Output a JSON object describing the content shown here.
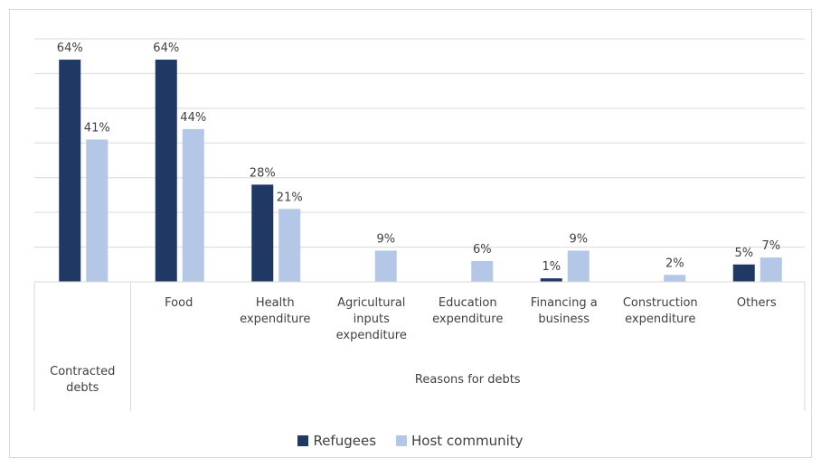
{
  "chart_data": {
    "type": "bar",
    "groups": [
      {
        "label": "Contracted debts",
        "categories": [
          null
        ]
      },
      {
        "label": "Reasons for debts",
        "categories": [
          "Food",
          "Health expenditure",
          "Agricultural inputs expenditure",
          "Education expenditure",
          "Financing a business",
          "Construction expenditure",
          "Others"
        ]
      }
    ],
    "series": [
      {
        "name": "Refugees",
        "color": "#1f3864",
        "values": [
          64,
          64,
          28,
          null,
          null,
          1,
          null,
          5
        ],
        "value_labels": [
          "64%",
          "64%",
          "28%",
          null,
          null,
          "1%",
          null,
          "5%"
        ]
      },
      {
        "name": "Host community",
        "color": "#b4c7e7",
        "values": [
          41,
          44,
          21,
          9,
          6,
          9,
          2,
          7
        ],
        "value_labels": [
          "41%",
          "44%",
          "21%",
          "9%",
          "6%",
          "9%",
          "2%",
          "7%"
        ]
      }
    ],
    "ylim": [
      0,
      70
    ],
    "yticks": [
      0,
      10,
      20,
      30,
      40,
      50,
      60,
      70
    ],
    "grid": true,
    "legend": "bottom"
  }
}
